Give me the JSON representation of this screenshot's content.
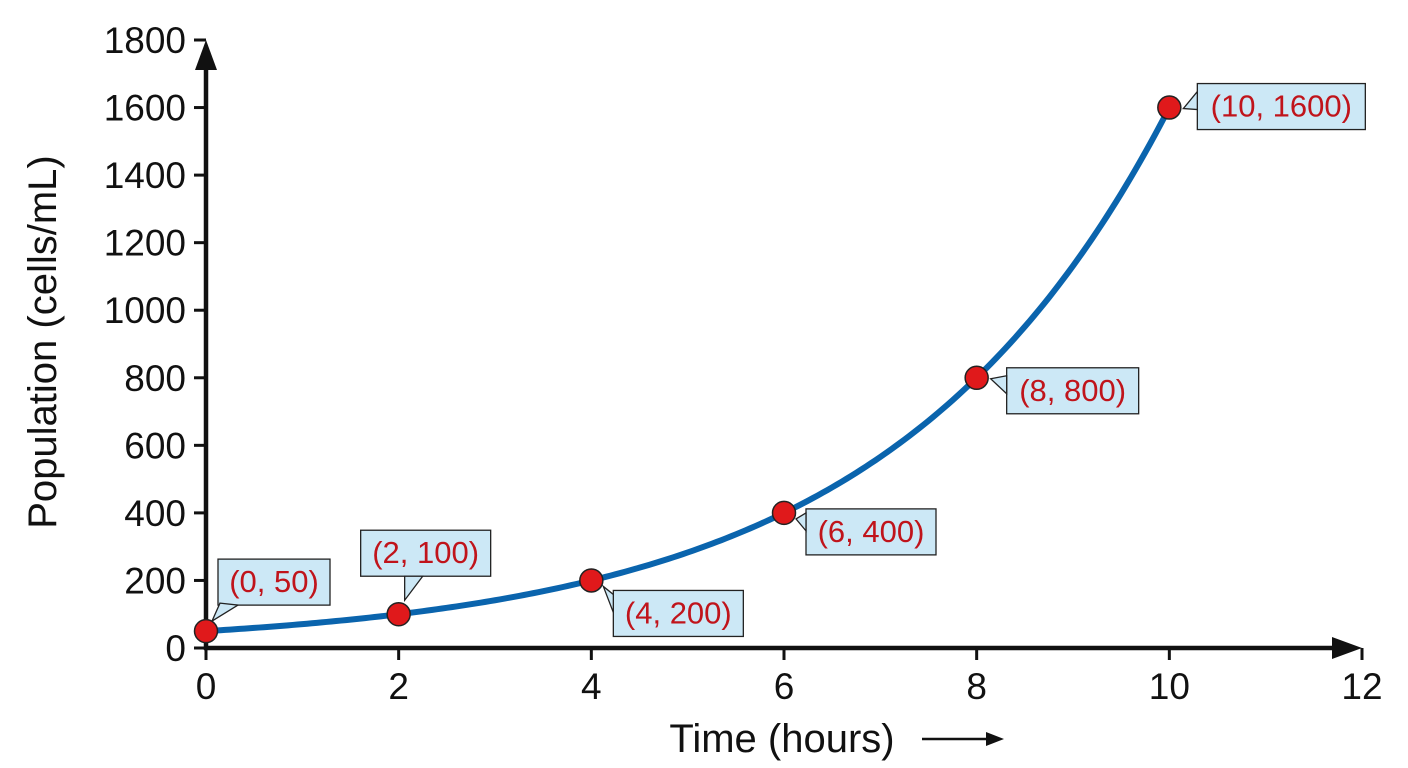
{
  "chart_data": {
    "type": "line",
    "title": "",
    "xlabel": "Time (hours)",
    "ylabel": "Population (cells/mL)",
    "xlim": [
      0,
      12
    ],
    "ylim": [
      0,
      1800
    ],
    "x_ticks": [
      "0",
      "2",
      "4",
      "6",
      "8",
      "10",
      "12"
    ],
    "y_ticks": [
      "0",
      "200",
      "400",
      "600",
      "800",
      "1000",
      "1200",
      "1400",
      "1600",
      "1800"
    ],
    "grid": false,
    "series": [
      {
        "x": [
          0,
          2,
          4,
          6,
          8,
          10
        ],
        "y": [
          50,
          100,
          200,
          400,
          800,
          1600
        ],
        "labels": [
          "(0, 50)",
          "(2, 100)",
          "(4, 200)",
          "(6, 400)",
          "(8, 800)",
          "(10, 1600)"
        ]
      }
    ],
    "colors": {
      "line": "#0a64ad",
      "point_fill": "#e0191b",
      "label_text": "#c0141b",
      "callout_fill": "#cce8f6",
      "axis": "#111111"
    }
  }
}
